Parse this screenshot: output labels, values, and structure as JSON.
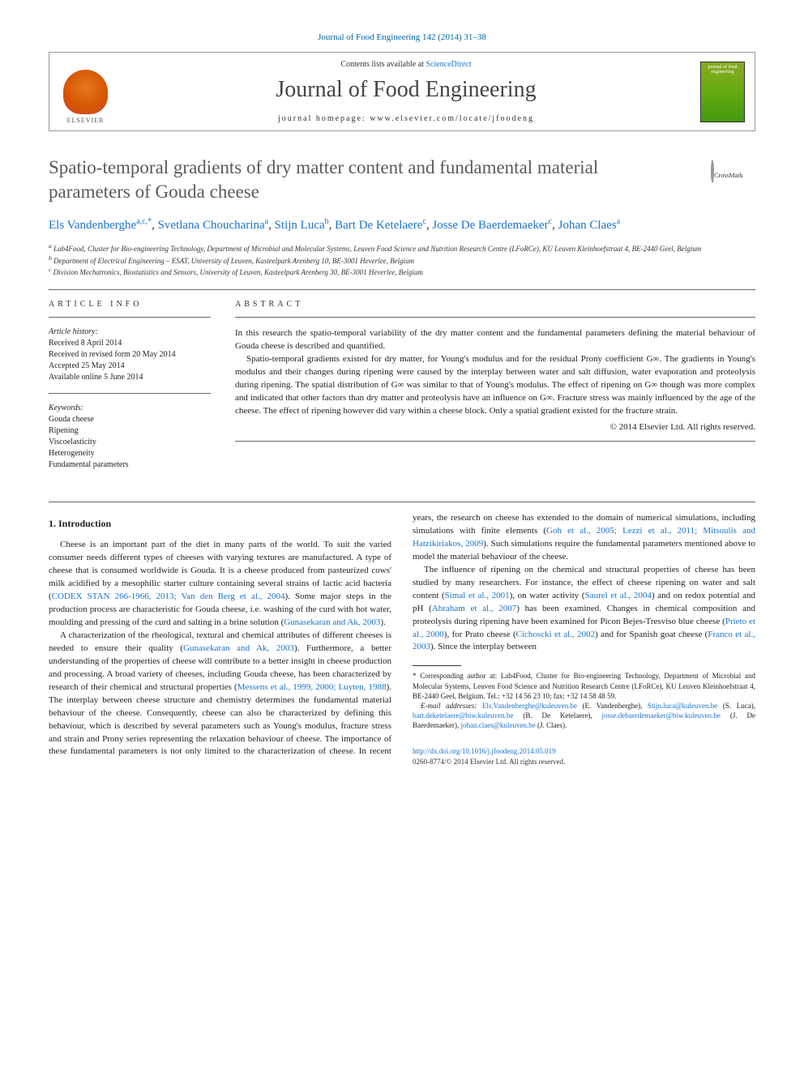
{
  "journal_ref": "Journal of Food Engineering 142 (2014) 31–38",
  "header": {
    "contents_line_pre": "Contents lists available at ",
    "contents_line_link": "ScienceDirect",
    "journal_title": "Journal of Food Engineering",
    "homepage_label": "journal homepage: ",
    "homepage_url": "www.elsevier.com/locate/jfoodeng",
    "elsevier_label": "ELSEVIER",
    "cover_text": "journal of food engineering"
  },
  "crossmark": "CrossMark",
  "title": "Spatio-temporal gradients of dry matter content and fundamental material parameters of Gouda cheese",
  "authors": [
    {
      "name": "Els Vandenberghe",
      "aff": "a,c,",
      "corr": "*"
    },
    {
      "name": "Svetlana Choucharina",
      "aff": "a",
      "corr": ""
    },
    {
      "name": "Stijn Luca",
      "aff": "b",
      "corr": ""
    },
    {
      "name": "Bart De Ketelaere",
      "aff": "c",
      "corr": ""
    },
    {
      "name": "Josse De Baerdemaeker",
      "aff": "c",
      "corr": ""
    },
    {
      "name": "Johan Claes",
      "aff": "a",
      "corr": ""
    }
  ],
  "affiliations": {
    "a": "Lab4Food, Cluster for Bio-engineering Technology, Department of Microbial and Molecular Systems, Leuven Food Science and Nutrition Research Centre (LFoRCe), KU Leuven Kleinhoefstraat 4, BE-2440 Geel, Belgium",
    "b": "Department of Electrical Engineering – ESAT, University of Leuven, Kasteelpark Arenberg 10, BE-3001 Heverlee, Belgium",
    "c": "Division Mechatronics, Biostatistics and Sensors, University of Leuven, Kasteelpark Arenberg 30, BE-3001 Heverlee, Belgium"
  },
  "article_info": {
    "heading": "article info",
    "history_label": "Article history:",
    "history": [
      "Received 8 April 2014",
      "Received in revised form 20 May 2014",
      "Accepted 25 May 2014",
      "Available online 5 June 2014"
    ],
    "keywords_label": "Keywords:",
    "keywords": [
      "Gouda cheese",
      "Ripening",
      "Viscoelasticity",
      "Heterogeneity",
      "Fundamental parameters"
    ]
  },
  "abstract": {
    "heading": "abstract",
    "p1": "In this research the spatio-temporal variability of the dry matter content and the fundamental parameters defining the material behaviour of Gouda cheese is described and quantified.",
    "p2": "Spatio-temporal gradients existed for dry matter, for Young's modulus and for the residual Prony coefficient G∞. The gradients in Young's modulus and their changes during ripening were caused by the interplay between water and salt diffusion, water evaporation and proteolysis during ripening. The spatial distribution of G∞ was similar to that of Young's modulus. The effect of ripening on G∞ though was more complex and indicated that other factors than dry matter and proteolysis have an influence on G∞. Fracture stress was mainly influenced by the age of the cheese. The effect of ripening however did vary within a cheese block. Only a spatial gradient existed for the fracture strain.",
    "copyright": "© 2014 Elsevier Ltd. All rights reserved."
  },
  "intro": {
    "heading": "1. Introduction",
    "p1_a": "Cheese is an important part of the diet in many parts of the world. To suit the varied consumer needs different types of cheeses with varying textures are manufactured. A type of cheese that is consumed worldwide is Gouda. It is a cheese produced from pasteurized cows' milk acidified by a mesophilic starter culture containing several strains of lactic acid bacteria (",
    "p1_cite1": "CODEX STAN 266-1966, 2013; Van den Berg et al., 2004",
    "p1_b": "). Some major steps in the production process are characteristic for Gouda cheese, i.e. washing of the curd with hot water, moulding and pressing of the curd and salting in a brine solution (",
    "p1_cite2": "Gunasekaran and Ak, 2003",
    "p1_c": ").",
    "p2_a": "A characterization of the rheological, textural and chemical attributes of different cheeses is needed to ensure their quality (",
    "p2_cite1": "Gunasekaran and Ak, 2003",
    "p2_b": "). Furthermore, a better understanding of the properties of cheese will contribute to a better insight in cheese production and processing. A broad variety of cheeses, including Gouda cheese, has been characterized by research of their chemical and structural properties (",
    "p2_cite2": "Messens et al., 1999, 2000; Luyten, 1988",
    "p2_c": "). The interplay between cheese structure and chemistry determines the fundamental material behaviour of the cheese. Consequently, cheese can also be characterized by defining this behaviour, which is described by several parameters such as Young's modulus, fracture stress and strain and Prony series representing the relaxation behaviour of cheese. The importance of these fundamental parameters is not only limited to the characterization of cheese. In recent years, the research on cheese has extended to the domain of numerical simulations, including simulations with finite elements (",
    "p2_cite3": "Goh et al., 2005; Lezzi et al., 2011; Mitsoulis and Hatzikiriakos, 2009",
    "p2_d": "). Such simulations require the fundamental parameters mentioned above to model the material behaviour of the cheese.",
    "p3_a": "The influence of ripening on the chemical and structural properties of cheese has been studied by many researchers. For instance, the effect of cheese ripening on water and salt content (",
    "p3_cite1": "Simal et al., 2001",
    "p3_b": "), on water activity (",
    "p3_cite2": "Saurel et al., 2004",
    "p3_c": ") and on redox potential and pH (",
    "p3_cite3": "Abraham et al., 2007",
    "p3_d": ") has been examined. Changes in chemical composition and proteolysis during ripening have been examined for Picon Bejes-Tresviso blue cheese (",
    "p3_cite4": "Prieto et al., 2000",
    "p3_e": "), for Prato cheese (",
    "p3_cite5": "Cichoscki et al., 2002",
    "p3_f": ") and for Spanish goat cheese (",
    "p3_cite6": "Franco et al., 2003",
    "p3_g": "). Since the interplay between"
  },
  "footnotes": {
    "corr_a": "* Corresponding author at: Lab4Food, Cluster for Bio-engineering Technology, Department of Microbial and Molecular Systems, Leuven Food Science and Nutrition Research Centre (LFoRCe), KU Leuven Kleinhoefstraat 4, BE-2440 Geel, Belgium. Tel.: +32 14 56 23 10; fax: +32 14 58 48 59.",
    "emails_label": "E-mail addresses: ",
    "emails": [
      {
        "addr": "Els.Vandenberghe@kuleuven.be",
        "who": " (E. Vandenberghe), "
      },
      {
        "addr": "Stijn.luca@kuleuven.be",
        "who": " (S. Luca), "
      },
      {
        "addr": "bart.deketelaere@biw.kuleuven.be",
        "who": " (B. De Ketelaere), "
      },
      {
        "addr": "josse.debaerdemaeker@biw.kuleuven.be",
        "who": " (J. De Baerdemaeker), "
      },
      {
        "addr": "johan.claes@kuleuven.be",
        "who": " (J. Claes)."
      }
    ]
  },
  "doi": {
    "url": "http://dx.doi.org/10.1016/j.jfoodeng.2014.05.019",
    "issn": "0260-8774/© 2014 Elsevier Ltd. All rights reserved."
  },
  "colors": {
    "link": "#1a73cc",
    "title_gray": "#5a5a5a",
    "text": "#222222",
    "elsevier_orange": "#e67722"
  }
}
